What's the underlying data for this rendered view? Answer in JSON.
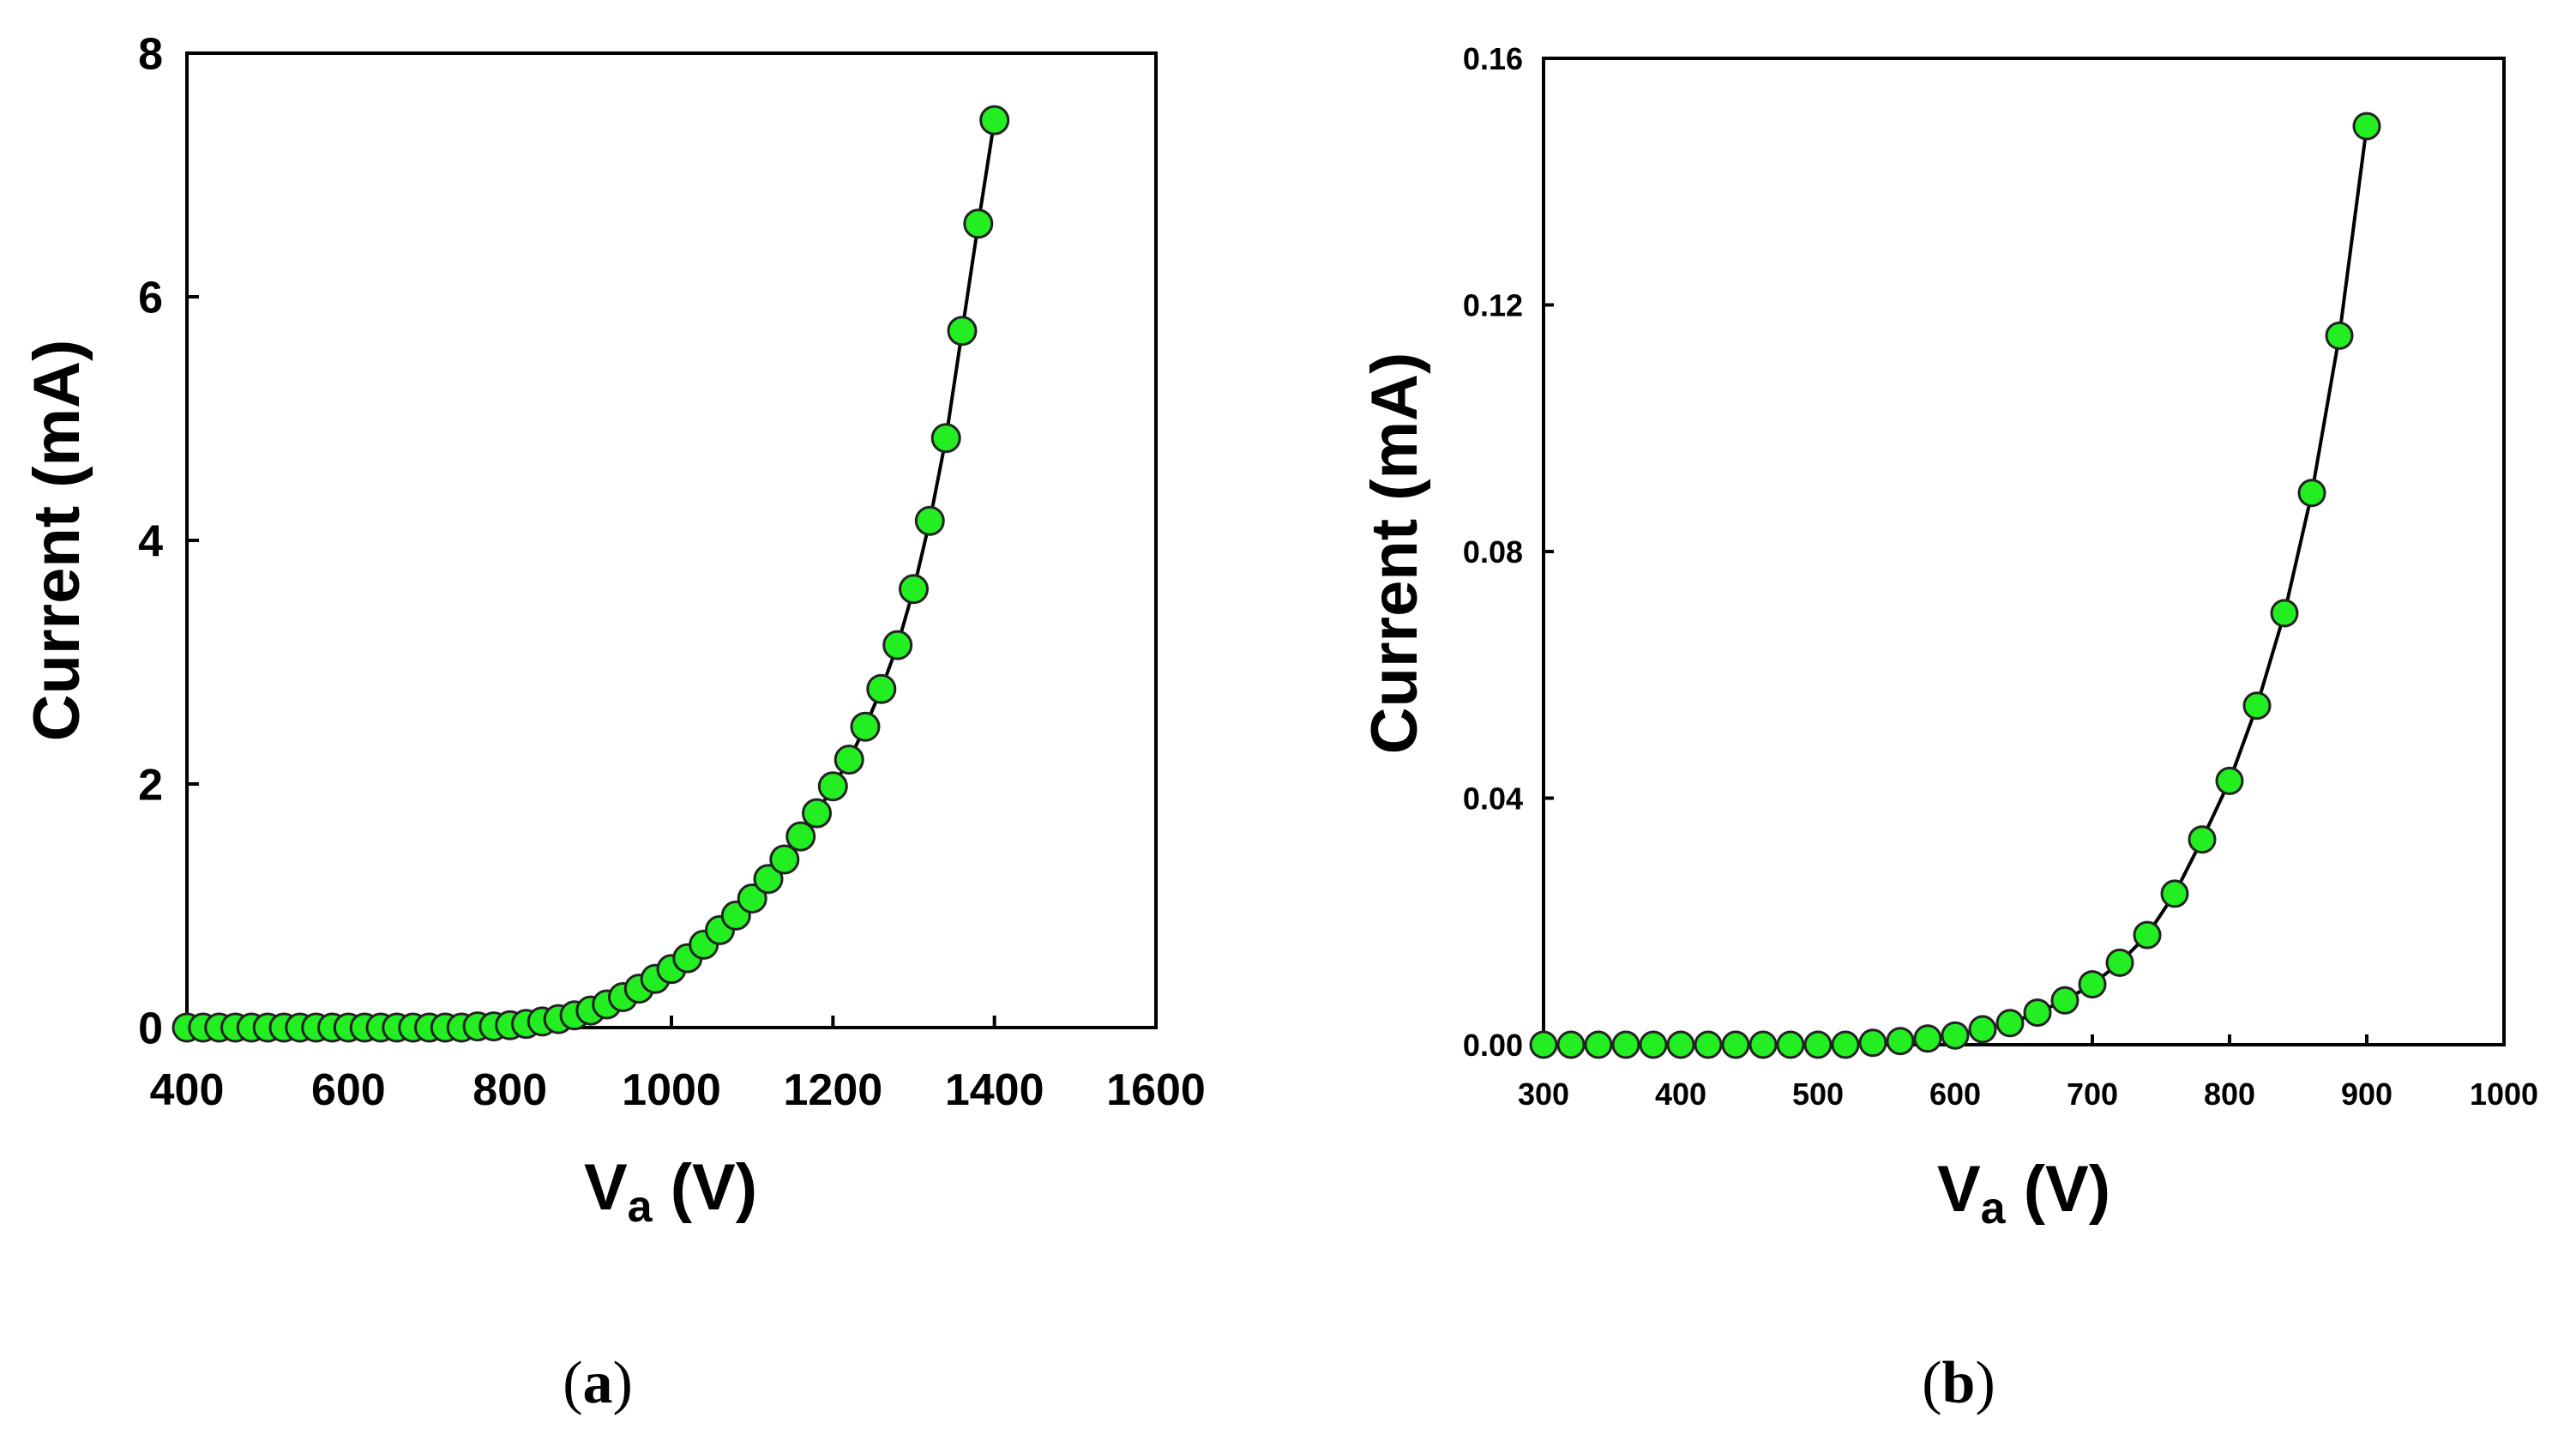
{
  "colors": {
    "marker_fill": "#22ee22",
    "marker_stroke": "#222222",
    "line": "#000000"
  },
  "chart_data": [
    {
      "id": "a",
      "type": "scatter",
      "caption_open": "(",
      "caption_letter": "a",
      "caption_close": ")",
      "title": "",
      "xlabel_main": "V",
      "xlabel_sub": "a",
      "xlabel_unit": " (V)",
      "ylabel": "Current (mA)",
      "xlim": [
        400,
        1600
      ],
      "ylim": [
        0,
        8
      ],
      "xticks": [
        400,
        600,
        800,
        1000,
        1200,
        1400,
        1600
      ],
      "yticks": [
        0,
        2,
        4,
        6,
        8
      ],
      "ytick_labels": [
        "0",
        "2",
        "4",
        "6",
        "8"
      ],
      "grid": false,
      "series": [
        {
          "name": "Current",
          "x": [
            400,
            420,
            440,
            460,
            480,
            500,
            520,
            540,
            560,
            580,
            600,
            620,
            640,
            660,
            680,
            700,
            720,
            740,
            760,
            780,
            800,
            820,
            840,
            860,
            880,
            900,
            920,
            940,
            960,
            980,
            1000,
            1020,
            1040,
            1060,
            1080,
            1100,
            1120,
            1140,
            1160,
            1180,
            1200,
            1220,
            1240,
            1260,
            1280,
            1300,
            1320,
            1340,
            1360,
            1380,
            1400
          ],
          "y": [
            0,
            0,
            0,
            0,
            0,
            0,
            0,
            0,
            0,
            0,
            0,
            0,
            0,
            0,
            0,
            0,
            0,
            0,
            0.01,
            0.01,
            0.02,
            0.03,
            0.05,
            0.07,
            0.1,
            0.14,
            0.19,
            0.25,
            0.32,
            0.4,
            0.48,
            0.57,
            0.68,
            0.8,
            0.92,
            1.06,
            1.22,
            1.38,
            1.57,
            1.76,
            1.98,
            2.2,
            2.47,
            2.78,
            3.14,
            3.6,
            4.16,
            4.84,
            5.72,
            6.6,
            7.45
          ]
        }
      ]
    },
    {
      "id": "b",
      "type": "scatter",
      "caption_open": "(",
      "caption_letter": "b",
      "caption_close": ")",
      "title": "",
      "xlabel_main": "V",
      "xlabel_sub": "a",
      "xlabel_unit": " (V)",
      "ylabel": "Current (mA)",
      "xlim": [
        300,
        1000
      ],
      "ylim": [
        0,
        0.16
      ],
      "xticks": [
        300,
        400,
        500,
        600,
        700,
        800,
        900,
        1000
      ],
      "yticks": [
        0,
        0.04,
        0.08,
        0.12,
        0.16
      ],
      "ytick_labels": [
        "0.00",
        "0.04",
        "0.08",
        "0.12",
        "0.16"
      ],
      "grid": false,
      "series": [
        {
          "name": "Current",
          "x": [
            300,
            320,
            340,
            360,
            380,
            400,
            420,
            440,
            460,
            480,
            500,
            520,
            540,
            560,
            580,
            600,
            620,
            640,
            660,
            680,
            700,
            720,
            740,
            760,
            780,
            800,
            820,
            840,
            860,
            880,
            900
          ],
          "y": [
            0,
            0,
            0,
            0,
            0,
            0,
            0,
            0,
            0,
            0,
            0,
            0,
            0.0003,
            0.0006,
            0.001,
            0.0015,
            0.0025,
            0.0035,
            0.0052,
            0.0072,
            0.0098,
            0.0133,
            0.0178,
            0.0245,
            0.0333,
            0.0428,
            0.055,
            0.07,
            0.0895,
            0.115,
            0.149
          ]
        }
      ]
    }
  ]
}
